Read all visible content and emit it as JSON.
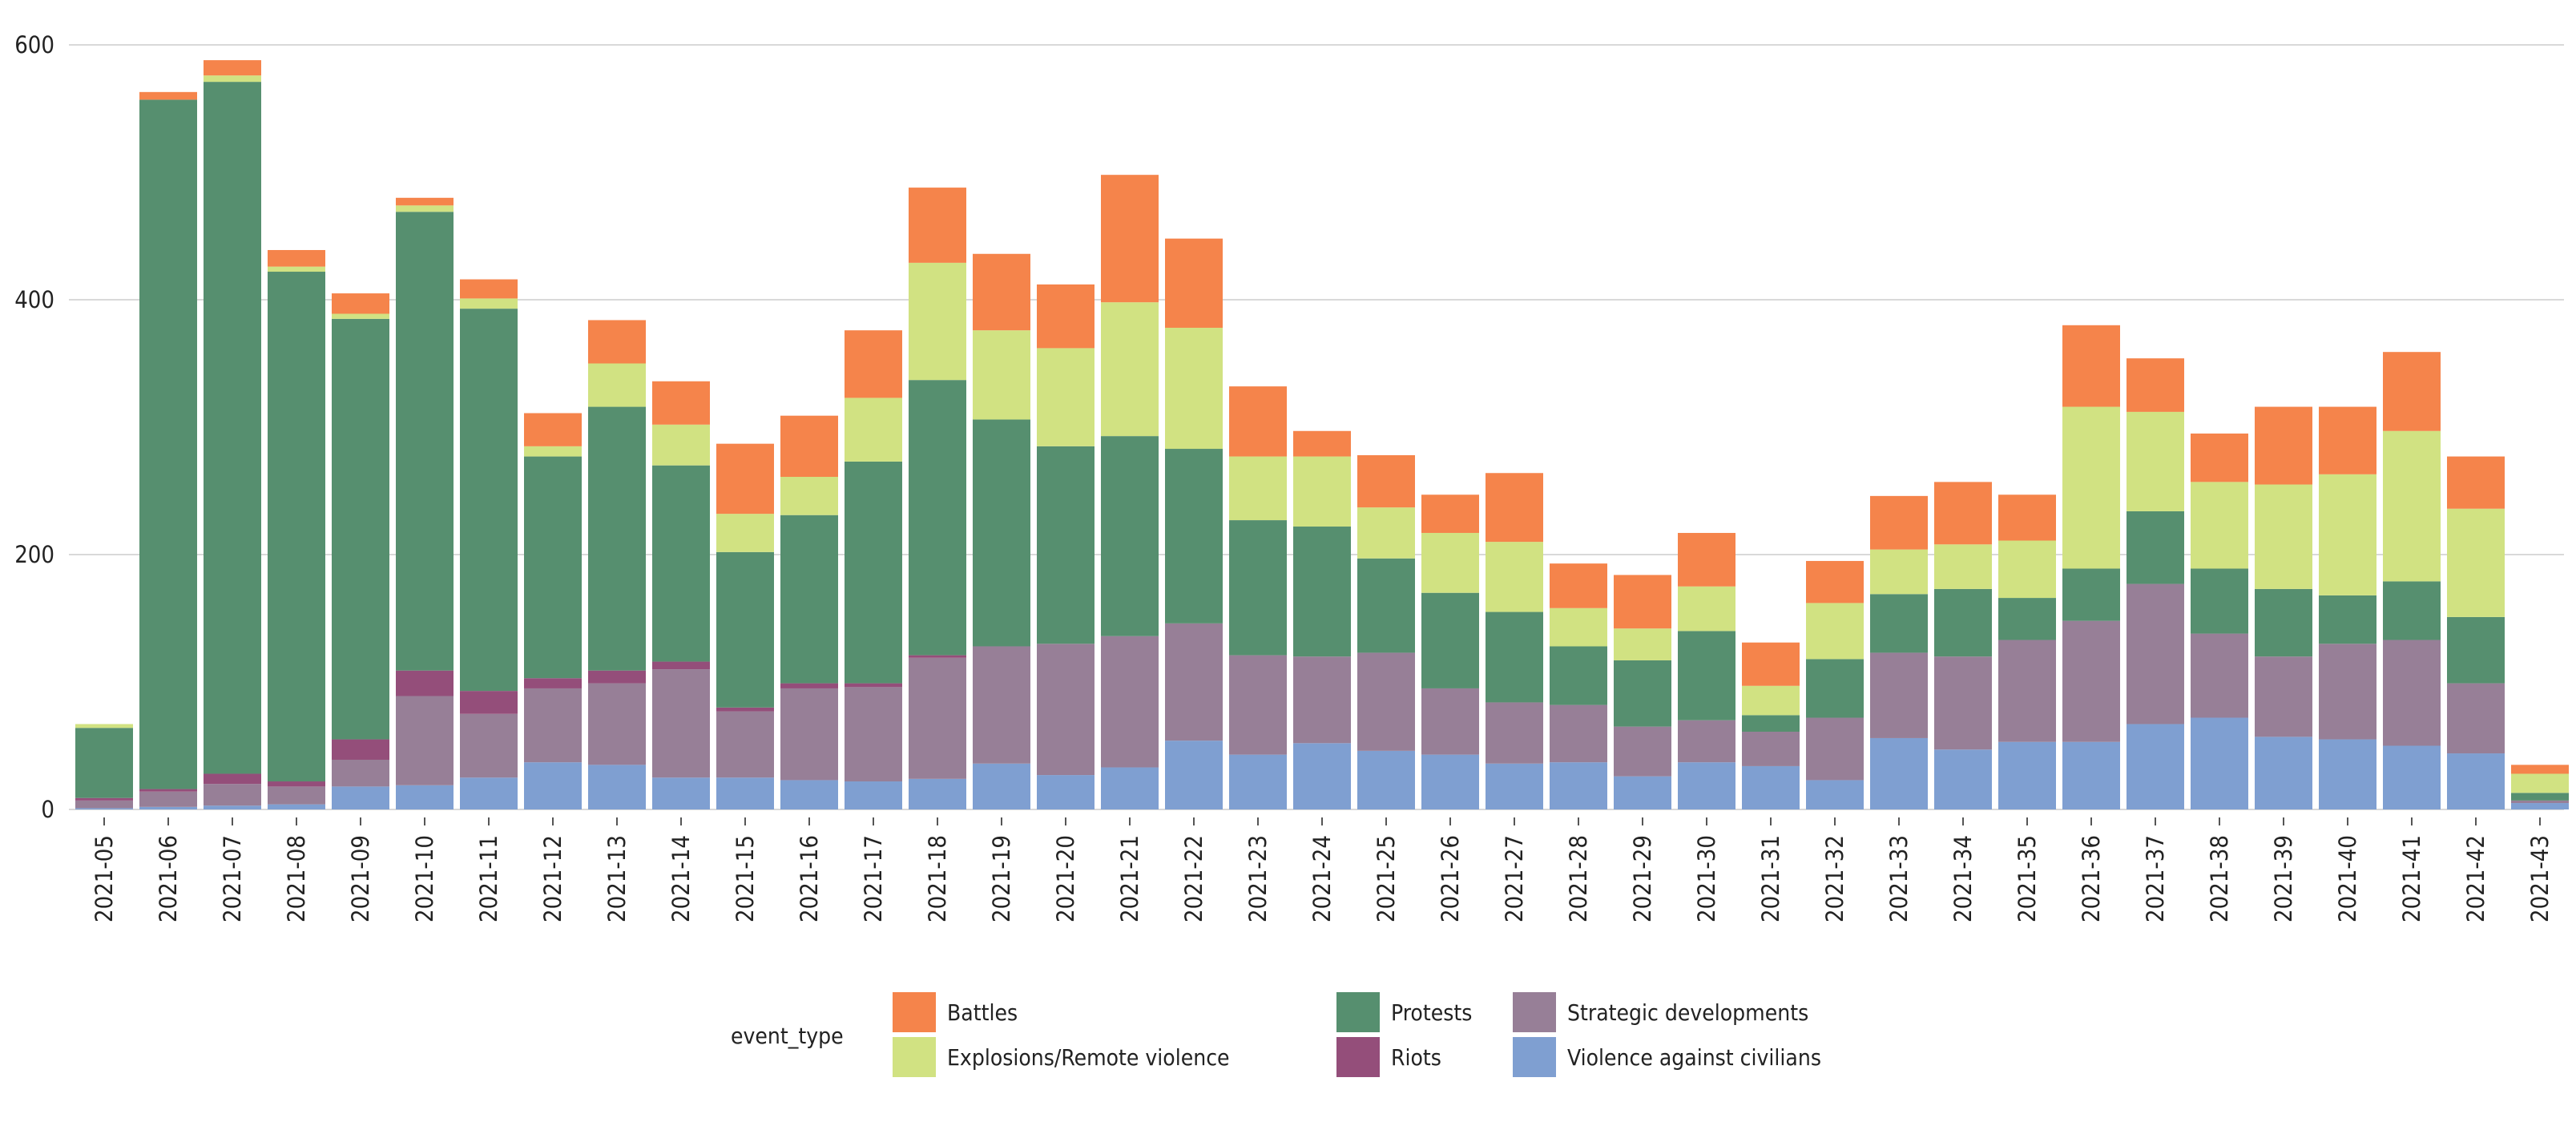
{
  "chart_data": {
    "type": "bar",
    "stacked": true,
    "title": "",
    "xlabel": "",
    "ylabel": "",
    "ylim": [
      0,
      620
    ],
    "yticks": [
      0,
      200,
      400,
      600
    ],
    "grid": true,
    "legend_position": "bottom",
    "legend_title": "event_type",
    "categories": [
      "2021-05",
      "2021-06",
      "2021-07",
      "2021-08",
      "2021-09",
      "2021-10",
      "2021-11",
      "2021-12",
      "2021-13",
      "2021-14",
      "2021-15",
      "2021-16",
      "2021-17",
      "2021-18",
      "2021-19",
      "2021-20",
      "2021-21",
      "2021-22",
      "2021-23",
      "2021-24",
      "2021-25",
      "2021-26",
      "2021-27",
      "2021-28",
      "2021-29",
      "2021-30",
      "2021-31",
      "2021-32",
      "2021-33",
      "2021-34",
      "2021-35",
      "2021-36",
      "2021-37",
      "2021-38",
      "2021-39",
      "2021-40",
      "2021-41",
      "2021-42",
      "2021-43"
    ],
    "series": [
      {
        "name": "Violence against civilians",
        "color": "#7f9fd1",
        "values": [
          1,
          2,
          3,
          4,
          18,
          19,
          25,
          37,
          35,
          25,
          25,
          23,
          22,
          24,
          36,
          27,
          33,
          54,
          43,
          52,
          46,
          43,
          36,
          37,
          26,
          37,
          34,
          23,
          56,
          47,
          53,
          53,
          67,
          72,
          57,
          55,
          50,
          44,
          5
        ]
      },
      {
        "name": "Strategic developments",
        "color": "#977f97",
        "values": [
          6,
          12,
          17,
          14,
          21,
          70,
          50,
          58,
          64,
          85,
          52,
          72,
          74,
          95,
          92,
          103,
          103,
          92,
          78,
          68,
          77,
          52,
          48,
          45,
          39,
          33,
          27,
          49,
          67,
          73,
          80,
          95,
          110,
          66,
          63,
          75,
          83,
          55,
          2
        ]
      },
      {
        "name": "Riots",
        "color": "#944e7a",
        "values": [
          2,
          2,
          8,
          4,
          16,
          20,
          18,
          8,
          10,
          6,
          3,
          4,
          3,
          2,
          0,
          0,
          0,
          0,
          0,
          0,
          0,
          0,
          0,
          0,
          0,
          0,
          0,
          0,
          0,
          0,
          0,
          0,
          0,
          0,
          0,
          0,
          0,
          0,
          0
        ]
      },
      {
        "name": "Protests",
        "color": "#568f6f",
        "values": [
          55,
          541,
          543,
          400,
          330,
          360,
          300,
          174,
          207,
          154,
          122,
          132,
          174,
          216,
          178,
          155,
          157,
          137,
          106,
          102,
          74,
          75,
          71,
          46,
          52,
          70,
          13,
          46,
          46,
          53,
          33,
          41,
          57,
          51,
          53,
          38,
          46,
          52,
          6
        ]
      },
      {
        "name": "Explosions/Remote violence",
        "color": "#d1e282",
        "values": [
          3,
          0,
          5,
          4,
          4,
          5,
          8,
          8,
          34,
          32,
          30,
          30,
          50,
          92,
          70,
          77,
          105,
          95,
          50,
          55,
          40,
          47,
          55,
          30,
          25,
          35,
          23,
          44,
          35,
          35,
          45,
          127,
          78,
          68,
          82,
          95,
          118,
          85,
          15
        ]
      },
      {
        "name": "Battles",
        "color": "#f5844b",
        "values": [
          0,
          6,
          12,
          13,
          16,
          6,
          15,
          26,
          34,
          34,
          55,
          48,
          53,
          59,
          60,
          50,
          100,
          70,
          55,
          20,
          41,
          30,
          54,
          35,
          42,
          42,
          34,
          33,
          42,
          49,
          36,
          64,
          42,
          38,
          61,
          53,
          62,
          41,
          7
        ]
      }
    ]
  },
  "legend": {
    "title": "event_type",
    "items": [
      {
        "name": "Battles",
        "color": "#f5844b"
      },
      {
        "name": "Explosions/Remote violence",
        "color": "#d1e282"
      },
      {
        "name": "Protests",
        "color": "#568f6f"
      },
      {
        "name": "Riots",
        "color": "#944e7a"
      },
      {
        "name": "Strategic developments",
        "color": "#977f97"
      },
      {
        "name": "Violence against civilians",
        "color": "#7f9fd1"
      }
    ]
  }
}
